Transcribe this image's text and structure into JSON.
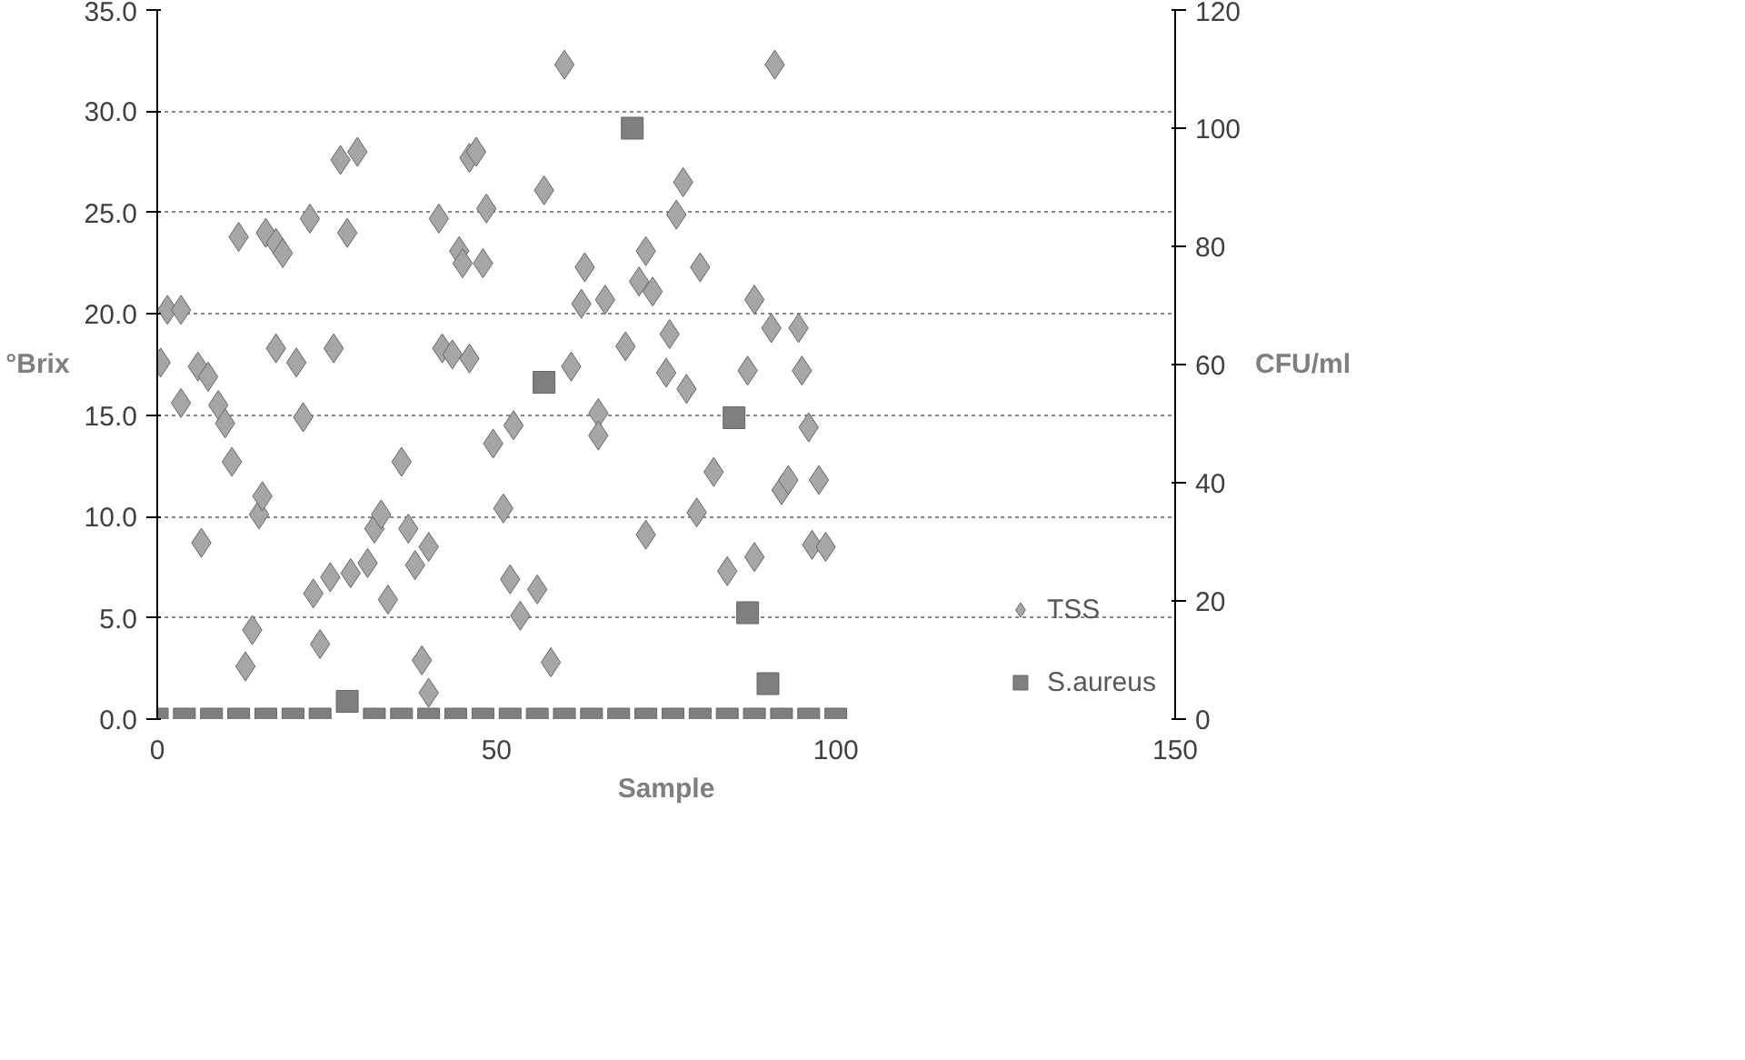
{
  "chart_data": {
    "type": "scatter",
    "xlabel": "Sample",
    "ylabel": "°Brix",
    "y2label": "CFU/ml",
    "xlim": [
      0,
      150
    ],
    "xticks": [
      0,
      50,
      100,
      150
    ],
    "ylim": [
      0,
      35
    ],
    "yticks": [
      {
        "value": 0,
        "label": "0.0"
      },
      {
        "value": 5,
        "label": "5.0"
      },
      {
        "value": 10,
        "label": "10.0"
      },
      {
        "value": 15,
        "label": "15.0"
      },
      {
        "value": 20,
        "label": "20.0"
      },
      {
        "value": 25,
        "label": "25.0"
      },
      {
        "value": 30,
        "label": "30.0"
      },
      {
        "value": 35,
        "label": "35.0"
      }
    ],
    "y2lim": [
      0,
      120
    ],
    "y2ticks": [
      0,
      20,
      40,
      60,
      80,
      100,
      120
    ],
    "grid": "y",
    "legend": "bottom right",
    "series": [
      {
        "name": "TSS",
        "color": "#a6a6a6",
        "marker": "diamond",
        "x": [
          0.5,
          1.5,
          3.5,
          3.5,
          6,
          7.5,
          6.5,
          9,
          10,
          11,
          12,
          13,
          14,
          15,
          15.5,
          16,
          17.5,
          18.5,
          17.5,
          20.5,
          21.5,
          22.5,
          23,
          24,
          25.5,
          26,
          27,
          28,
          28.5,
          29.5,
          31,
          32,
          33,
          34,
          36,
          37,
          38,
          39,
          40,
          40,
          41.5,
          42,
          43.5,
          44.5,
          45,
          46,
          46,
          48,
          48.5,
          47,
          57,
          60,
          62.5,
          63,
          66,
          69,
          71,
          72,
          73,
          75,
          75.5,
          76.5,
          77.5,
          78,
          79.5,
          80,
          82,
          84,
          87,
          88,
          88,
          90.5,
          91,
          92,
          93,
          94.5,
          95,
          96,
          96.5,
          97.5,
          98.5,
          49.5,
          51,
          52,
          52.5,
          53.5,
          56,
          58,
          61,
          65,
          65,
          72
        ],
        "values": [
          17.6,
          20.2,
          20.2,
          15.6,
          17.4,
          16.9,
          8.7,
          15.5,
          14.6,
          12.7,
          23.8,
          2.6,
          4.4,
          10.1,
          11,
          24,
          23.5,
          23,
          18.3,
          17.6,
          14.9,
          24.7,
          6.2,
          3.7,
          7,
          18.3,
          27.6,
          24,
          7.2,
          28,
          7.7,
          9.4,
          10.1,
          5.9,
          12.7,
          9.4,
          7.6,
          2.9,
          1.3,
          8.5,
          24.7,
          18.3,
          18,
          23.1,
          22.5,
          27.7,
          17.8,
          22.5,
          25.2,
          28,
          26.1,
          32.3,
          20.5,
          22.3,
          20.7,
          18.4,
          21.6,
          23.1,
          21.1,
          17.1,
          19,
          24.9,
          26.5,
          16.3,
          10.2,
          22.3,
          12.2,
          7.3,
          17.2,
          20.7,
          8,
          19.3,
          32.3,
          11.3,
          11.8,
          19.3,
          17.2,
          14.4,
          8.6,
          11.8,
          8.5,
          13.6,
          10.4,
          6.9,
          14.5,
          5.1,
          6.4,
          2.8,
          17.4,
          15.1,
          14,
          9.1
        ]
      },
      {
        "name": "S.aureus",
        "color": "#7f7f7f",
        "marker": "square",
        "axis": "y2",
        "x": [
          0,
          4,
          8,
          12,
          16,
          20,
          24,
          28,
          32,
          36,
          40,
          44,
          48,
          52,
          56,
          57,
          60,
          64,
          68,
          70,
          72,
          76,
          80,
          84,
          85,
          87,
          88,
          90,
          92,
          96,
          100
        ],
        "values": [
          0,
          0,
          0,
          0,
          0,
          0,
          0,
          3,
          0,
          0,
          0,
          0,
          0,
          0,
          0,
          57,
          0,
          0,
          0,
          100,
          0,
          0,
          0,
          0,
          51,
          18,
          0,
          6,
          0,
          0,
          0
        ]
      }
    ]
  }
}
